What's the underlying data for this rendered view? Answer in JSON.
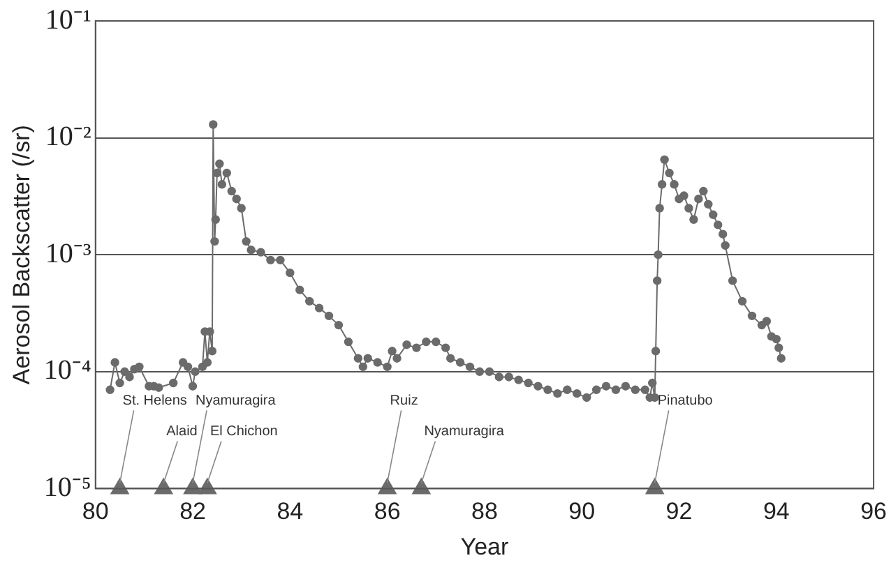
{
  "chart_data": {
    "type": "scatter",
    "xlabel": "Year",
    "ylabel": "Aerosol Backscatter (/sr)",
    "log": "y",
    "grid": "y",
    "legend": false,
    "line_style": "solid",
    "xlim": [
      80,
      96
    ],
    "xticks": [
      80,
      82,
      84,
      86,
      88,
      90,
      92,
      94,
      96
    ],
    "ylim": [
      1e-05,
      0.1
    ],
    "yticks": [
      {
        "value": 1e-05,
        "label": "10⁻⁵"
      },
      {
        "value": 0.0001,
        "label": "10⁻⁴"
      },
      {
        "value": 0.001,
        "label": "10⁻³"
      },
      {
        "value": 0.01,
        "label": "10⁻²"
      },
      {
        "value": 0.1,
        "label": "10⁻¹"
      }
    ],
    "series": [
      {
        "type": "line",
        "marker": "circle",
        "color": "#6b6b6b",
        "x": [
          80.3,
          80.4,
          80.5,
          80.6,
          80.7,
          80.8,
          80.9,
          81.1,
          81.2,
          81.3,
          81.6,
          81.8,
          81.9,
          82.0,
          82.05,
          82.2,
          82.25,
          82.3,
          82.35,
          82.4,
          82.42,
          82.45,
          82.47,
          82.5,
          82.55,
          82.6,
          82.7,
          82.8,
          82.9,
          83.0,
          83.1,
          83.2,
          83.4,
          83.6,
          83.8,
          84.0,
          84.2,
          84.4,
          84.6,
          84.8,
          85.0,
          85.2,
          85.4,
          85.5,
          85.6,
          85.8,
          86.0,
          86.1,
          86.2,
          86.4,
          86.6,
          86.8,
          87.0,
          87.2,
          87.3,
          87.5,
          87.7,
          87.9,
          88.1,
          88.3,
          88.5,
          88.7,
          88.9,
          89.1,
          89.3,
          89.5,
          89.7,
          89.9,
          90.1,
          90.3,
          90.5,
          90.7,
          90.9,
          91.1,
          91.3,
          91.4,
          91.45,
          91.5,
          91.52,
          91.55,
          91.57,
          91.6,
          91.65,
          91.7,
          91.8,
          91.9,
          92.0,
          92.1,
          92.2,
          92.3,
          92.4,
          92.5,
          92.6,
          92.7,
          92.8,
          92.9,
          92.95,
          93.1,
          93.3,
          93.5,
          93.7,
          93.8,
          93.9,
          94.0,
          94.05,
          94.1
        ],
        "values": [
          7e-05,
          0.00012,
          8e-05,
          0.0001,
          9e-05,
          0.000105,
          0.00011,
          7.5e-05,
          7.5e-05,
          7.3e-05,
          8e-05,
          0.00012,
          0.00011,
          7.5e-05,
          0.0001,
          0.00011,
          0.00022,
          0.00012,
          0.00022,
          0.00015,
          0.013,
          0.0013,
          0.002,
          0.005,
          0.006,
          0.004,
          0.005,
          0.0035,
          0.003,
          0.0025,
          0.0013,
          0.0011,
          0.00105,
          0.0009,
          0.0009,
          0.0007,
          0.0005,
          0.0004,
          0.00035,
          0.0003,
          0.00025,
          0.00018,
          0.00013,
          0.00011,
          0.00013,
          0.00012,
          0.00011,
          0.00015,
          0.00013,
          0.00017,
          0.00016,
          0.00018,
          0.00018,
          0.00016,
          0.00013,
          0.00012,
          0.00011,
          0.0001,
          0.0001,
          9e-05,
          9e-05,
          8.5e-05,
          8e-05,
          7.5e-05,
          7e-05,
          6.5e-05,
          7e-05,
          6.5e-05,
          6e-05,
          7e-05,
          7.5e-05,
          7e-05,
          7.5e-05,
          7e-05,
          7e-05,
          6e-05,
          8e-05,
          6e-05,
          0.00015,
          0.0006,
          0.001,
          0.0025,
          0.004,
          0.0065,
          0.005,
          0.004,
          0.003,
          0.0032,
          0.0025,
          0.002,
          0.003,
          0.0035,
          0.0027,
          0.0022,
          0.0018,
          0.0015,
          0.0012,
          0.0006,
          0.0004,
          0.0003,
          0.00025,
          0.00027,
          0.0002,
          0.00019,
          0.00016,
          0.00013
        ]
      },
      {
        "marker": "triangle",
        "color": "#6b6b6b",
        "x": [
          80.5,
          81.4,
          82.0,
          82.3,
          86.0,
          86.7,
          91.5
        ],
        "values": [
          1e-05,
          1e-05,
          1e-05,
          1e-05,
          1e-05,
          1e-05,
          1e-05
        ]
      }
    ],
    "annotations": [
      {
        "text": "St. Helens",
        "x": 80.5,
        "y": 1e-05
      },
      {
        "text": "Alaid",
        "x": 81.4,
        "y": 1e-05
      },
      {
        "text": "Nyamuragira",
        "x": 82.0,
        "y": 1e-05
      },
      {
        "text": "El Chichon",
        "x": 82.3,
        "y": 1e-05
      },
      {
        "text": "Ruiz",
        "x": 86.0,
        "y": 1e-05
      },
      {
        "text": "Nyamuragira",
        "x": 86.7,
        "y": 1e-05
      },
      {
        "text": "Pinatubo",
        "x": 91.5,
        "y": 1e-05
      }
    ]
  }
}
